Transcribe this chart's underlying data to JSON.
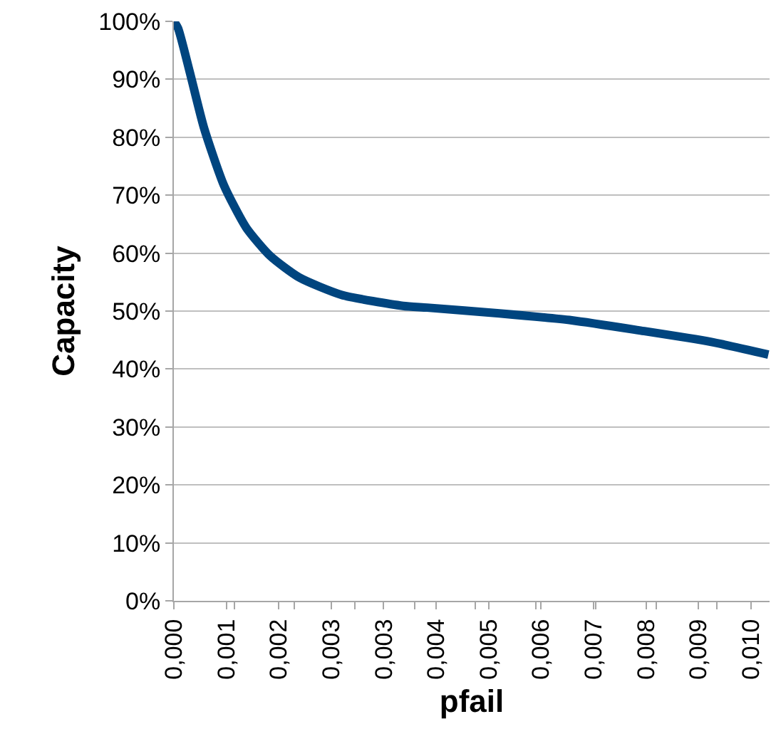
{
  "chart_data": {
    "type": "line",
    "xlabel": "pfail",
    "ylabel": "Capacity",
    "x": [
      0,
      7e-05,
      0.00026,
      0.0005,
      0.00083,
      0.0012,
      0.0016,
      0.00208,
      0.00278,
      0.0038,
      0.0042,
      0.0054,
      0.0066,
      0.0077,
      0.0089,
      0.00986
    ],
    "series": [
      {
        "color": "#00457f",
        "values": [
          100,
          98.8,
          91.4,
          81.6,
          71.7,
          64.4,
          59.5,
          55.8,
          52.8,
          50.9,
          50.6,
          49.6,
          48.4,
          46.7,
          44.7,
          42.5
        ]
      }
    ],
    "xlim": [
      0,
      0.00988
    ],
    "xticks": [
      {
        "value": 0,
        "label": "0,000"
      },
      {
        "value": 0.00087,
        "label": "0,001"
      },
      {
        "value": 0.00174,
        "label": "0,002"
      },
      {
        "value": 0.00261,
        "label": "0,003"
      },
      {
        "value": 0.00348,
        "label": "0,003"
      },
      {
        "value": 0.00435,
        "label": "0,004"
      },
      {
        "value": 0.00522,
        "label": "0,005"
      },
      {
        "value": 0.00609,
        "label": "0,006"
      },
      {
        "value": 0.00696,
        "label": "0,007"
      },
      {
        "value": 0.00783,
        "label": "0,008"
      },
      {
        "value": 0.0087,
        "label": "0,009"
      },
      {
        "value": 0.00957,
        "label": "0,010"
      },
      {
        "value": 0.001,
        "label": null
      },
      {
        "value": 0.002,
        "label": null
      },
      {
        "value": 0.003,
        "label": null
      },
      {
        "value": 0.004,
        "label": null
      },
      {
        "value": 0.005,
        "label": null
      },
      {
        "value": 0.006,
        "label": null
      },
      {
        "value": 0.007,
        "label": null
      },
      {
        "value": 0.008,
        "label": null
      },
      {
        "value": 0.009,
        "label": null
      }
    ],
    "ylim": [
      0,
      100
    ],
    "yticks": [
      {
        "value": 0,
        "label": "0%"
      },
      {
        "value": 10,
        "label": "10%"
      },
      {
        "value": 20,
        "label": "20%"
      },
      {
        "value": 30,
        "label": "30%"
      },
      {
        "value": 40,
        "label": "40%"
      },
      {
        "value": 50,
        "label": "50%"
      },
      {
        "value": 60,
        "label": "60%"
      },
      {
        "value": 70,
        "label": "70%"
      },
      {
        "value": 80,
        "label": "80%"
      },
      {
        "value": 90,
        "label": "90%"
      },
      {
        "value": 100,
        "label": "100%"
      }
    ],
    "grid": "y",
    "legend": false,
    "marker": "none",
    "line_style": "solid"
  }
}
